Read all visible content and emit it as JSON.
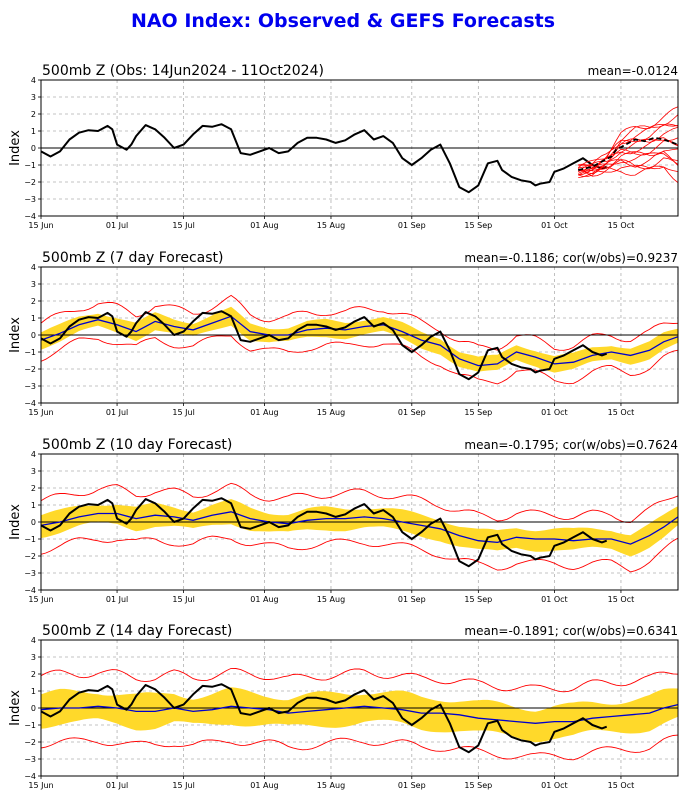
{
  "title": "NAO Index: Observed & GEFS Forecasts",
  "colors": {
    "title": "#0000ee",
    "obs": "#000000",
    "forecast_mean": "#0000cc",
    "band": "#ffd92a",
    "envelope": "#ff0000",
    "zero": "#000000",
    "grid": "#b0b0b0"
  },
  "chart_data": [
    {
      "type": "line",
      "title": "500mb Z (Obs: 14Jun2024 - 11Oct2024)",
      "stats": "mean=-0.0124",
      "ylabel": "Index",
      "xlabel": "",
      "ylim": [
        -4,
        4
      ],
      "yticks": [
        -4,
        -3,
        -2,
        -1,
        0,
        1,
        2,
        3,
        4
      ],
      "xlim": [
        0,
        134
      ],
      "xticks": [
        {
          "x": 0,
          "label": "15 Jun"
        },
        {
          "x": 16,
          "label": "01 Jul"
        },
        {
          "x": 30,
          "label": "15 Jul"
        },
        {
          "x": 47,
          "label": "01 Aug"
        },
        {
          "x": 61,
          "label": "15 Aug"
        },
        {
          "x": 78,
          "label": "01 Sep"
        },
        {
          "x": 92,
          "label": "15 Sep"
        },
        {
          "x": 108,
          "label": "01 Oct"
        },
        {
          "x": 122,
          "label": "15 Oct"
        }
      ],
      "grid": true,
      "series": [
        {
          "role": "observed",
          "x": [
            0,
            2,
            4,
            6,
            8,
            10,
            12,
            14,
            15,
            16,
            18,
            19,
            20,
            22,
            24,
            26,
            28,
            30,
            32,
            34,
            36,
            38,
            40,
            42,
            44,
            46,
            48,
            50,
            52,
            54,
            56,
            58,
            60,
            62,
            64,
            66,
            68,
            70,
            72,
            74,
            76,
            78,
            80,
            82,
            84,
            86,
            88,
            90,
            92,
            94,
            96,
            97,
            99,
            101,
            103,
            104,
            105,
            107,
            108,
            110,
            112,
            114,
            116,
            118,
            119
          ],
          "y": [
            -0.2,
            -0.5,
            -0.2,
            0.5,
            0.9,
            1.05,
            1.0,
            1.3,
            1.1,
            0.2,
            -0.1,
            0.2,
            0.7,
            1.35,
            1.1,
            0.6,
            0.0,
            0.2,
            0.8,
            1.3,
            1.25,
            1.4,
            1.1,
            -0.3,
            -0.4,
            -0.2,
            0.0,
            -0.3,
            -0.2,
            0.3,
            0.6,
            0.6,
            0.5,
            0.3,
            0.45,
            0.8,
            1.05,
            0.5,
            0.7,
            0.3,
            -0.6,
            -1.0,
            -0.6,
            -0.1,
            0.2,
            -0.9,
            -2.3,
            -2.6,
            -2.2,
            -0.9,
            -0.75,
            -1.3,
            -1.7,
            -1.9,
            -2.0,
            -2.2,
            -2.1,
            -2.0,
            -1.4,
            -1.2,
            -0.9,
            -0.6,
            -1.0,
            -1.2,
            -1.1
          ]
        },
        {
          "role": "forecast_mean",
          "x": [
            113,
            116,
            118,
            120,
            121,
            123,
            125,
            127,
            129,
            131,
            134
          ],
          "y": [
            -1.3,
            -1.1,
            -0.8,
            -0.5,
            -0.1,
            0.2,
            0.5,
            0.4,
            0.6,
            0.5,
            0.2
          ]
        },
        {
          "role": "members_upper",
          "x": [
            113,
            116,
            119,
            122,
            125,
            128,
            131,
            134
          ],
          "y": [
            -1.2,
            -0.9,
            -0.4,
            0.7,
            1.2,
            1.4,
            1.8,
            2.2
          ]
        },
        {
          "role": "members_lower",
          "x": [
            113,
            116,
            119,
            122,
            125,
            128,
            131,
            134
          ],
          "y": [
            -1.5,
            -1.6,
            -1.3,
            -1.2,
            -1.5,
            -1.4,
            -1.1,
            -1.8
          ]
        }
      ]
    },
    {
      "type": "line",
      "title": "500mb Z (7 day Forecast)",
      "stats": "mean=-0.1186; cor(w/obs)=0.9237",
      "ylabel": "Index",
      "xlabel": "",
      "ylim": [
        -4,
        4
      ],
      "yticks": [
        -4,
        -3,
        -2,
        -1,
        0,
        1,
        2,
        3,
        4
      ],
      "xlim": [
        0,
        134
      ],
      "xticks": [
        {
          "x": 0,
          "label": "15 Jun"
        },
        {
          "x": 16,
          "label": "01 Jul"
        },
        {
          "x": 30,
          "label": "15 Jul"
        },
        {
          "x": 47,
          "label": "01 Aug"
        },
        {
          "x": 61,
          "label": "15 Aug"
        },
        {
          "x": 78,
          "label": "01 Sep"
        },
        {
          "x": 92,
          "label": "15 Sep"
        },
        {
          "x": 108,
          "label": "01 Oct"
        },
        {
          "x": 122,
          "label": "15 Oct"
        }
      ],
      "grid": true,
      "series": [
        {
          "role": "observed",
          "x": [
            0,
            2,
            4,
            6,
            8,
            10,
            12,
            14,
            15,
            16,
            18,
            19,
            20,
            22,
            24,
            26,
            28,
            30,
            32,
            34,
            36,
            38,
            40,
            42,
            44,
            46,
            48,
            50,
            52,
            54,
            56,
            58,
            60,
            62,
            64,
            66,
            68,
            70,
            72,
            74,
            76,
            78,
            80,
            82,
            84,
            86,
            88,
            90,
            92,
            94,
            96,
            97,
            99,
            101,
            103,
            104,
            105,
            107,
            108,
            110,
            112,
            114,
            116,
            118,
            119
          ],
          "y": [
            -0.2,
            -0.5,
            -0.2,
            0.5,
            0.9,
            1.05,
            1.0,
            1.3,
            1.1,
            0.2,
            -0.1,
            0.2,
            0.7,
            1.35,
            1.1,
            0.6,
            0.0,
            0.2,
            0.8,
            1.3,
            1.25,
            1.4,
            1.1,
            -0.3,
            -0.4,
            -0.2,
            0.0,
            -0.3,
            -0.2,
            0.3,
            0.6,
            0.6,
            0.5,
            0.3,
            0.45,
            0.8,
            1.05,
            0.5,
            0.7,
            0.3,
            -0.6,
            -1.0,
            -0.6,
            -0.1,
            0.2,
            -0.9,
            -2.3,
            -2.6,
            -2.2,
            -0.9,
            -0.75,
            -1.3,
            -1.7,
            -1.9,
            -2.0,
            -2.2,
            -2.1,
            -2.0,
            -1.4,
            -1.2,
            -0.9,
            -0.6,
            -1.0,
            -1.2,
            -1.1
          ]
        },
        {
          "role": "forecast_mean",
          "x": [
            0,
            4,
            8,
            12,
            16,
            20,
            24,
            28,
            32,
            36,
            40,
            44,
            48,
            52,
            56,
            60,
            64,
            68,
            72,
            76,
            80,
            84,
            88,
            92,
            96,
            100,
            104,
            108,
            112,
            116,
            120,
            124,
            128,
            131,
            134
          ],
          "y": [
            -0.3,
            0.1,
            0.6,
            0.9,
            0.6,
            0.2,
            0.8,
            0.5,
            0.3,
            0.7,
            1.1,
            0.2,
            0.0,
            0.0,
            0.3,
            0.4,
            0.3,
            0.5,
            0.6,
            0.2,
            -0.3,
            -0.6,
            -1.4,
            -1.8,
            -1.7,
            -1.0,
            -1.3,
            -1.7,
            -1.6,
            -1.2,
            -1.0,
            -1.2,
            -0.9,
            -0.4,
            -0.1
          ]
        },
        {
          "role": "band_halfwidth",
          "values": 0.45
        },
        {
          "role": "envelope_halfwidth",
          "values": 1.0
        }
      ]
    },
    {
      "type": "line",
      "title": "500mb Z (10 day Forecast)",
      "stats": "mean=-0.1795; cor(w/obs)=0.7624",
      "ylabel": "Index",
      "xlabel": "",
      "ylim": [
        -4,
        4
      ],
      "yticks": [
        -4,
        -3,
        -2,
        -1,
        0,
        1,
        2,
        3,
        4
      ],
      "xlim": [
        0,
        134
      ],
      "xticks": [
        {
          "x": 0,
          "label": "15 Jun"
        },
        {
          "x": 16,
          "label": "01 Jul"
        },
        {
          "x": 30,
          "label": "15 Jul"
        },
        {
          "x": 47,
          "label": "01 Aug"
        },
        {
          "x": 61,
          "label": "15 Aug"
        },
        {
          "x": 78,
          "label": "01 Sep"
        },
        {
          "x": 92,
          "label": "15 Sep"
        },
        {
          "x": 108,
          "label": "01 Oct"
        },
        {
          "x": 122,
          "label": "15 Oct"
        }
      ],
      "grid": true,
      "series": [
        {
          "role": "observed",
          "x": [
            0,
            2,
            4,
            6,
            8,
            10,
            12,
            14,
            15,
            16,
            18,
            19,
            20,
            22,
            24,
            26,
            28,
            30,
            32,
            34,
            36,
            38,
            40,
            42,
            44,
            46,
            48,
            50,
            52,
            54,
            56,
            58,
            60,
            62,
            64,
            66,
            68,
            70,
            72,
            74,
            76,
            78,
            80,
            82,
            84,
            86,
            88,
            90,
            92,
            94,
            96,
            97,
            99,
            101,
            103,
            104,
            105,
            107,
            108,
            110,
            112,
            114,
            116,
            118,
            119
          ],
          "y": [
            -0.2,
            -0.5,
            -0.2,
            0.5,
            0.9,
            1.05,
            1.0,
            1.3,
            1.1,
            0.2,
            -0.1,
            0.2,
            0.7,
            1.35,
            1.1,
            0.6,
            0.0,
            0.2,
            0.8,
            1.3,
            1.25,
            1.4,
            1.1,
            -0.3,
            -0.4,
            -0.2,
            0.0,
            -0.3,
            -0.2,
            0.3,
            0.6,
            0.6,
            0.5,
            0.3,
            0.45,
            0.8,
            1.05,
            0.5,
            0.7,
            0.3,
            -0.6,
            -1.0,
            -0.6,
            -0.1,
            0.2,
            -0.9,
            -2.3,
            -2.6,
            -2.2,
            -0.9,
            -0.75,
            -1.3,
            -1.7,
            -1.9,
            -2.0,
            -2.2,
            -2.1,
            -2.0,
            -1.4,
            -1.2,
            -0.9,
            -0.6,
            -1.0,
            -1.2,
            -1.1
          ]
        },
        {
          "role": "forecast_mean",
          "x": [
            0,
            4,
            8,
            12,
            16,
            20,
            24,
            28,
            32,
            36,
            40,
            44,
            48,
            52,
            56,
            60,
            64,
            68,
            72,
            76,
            80,
            84,
            88,
            92,
            96,
            100,
            104,
            108,
            112,
            116,
            120,
            124,
            128,
            131,
            134
          ],
          "y": [
            -0.2,
            0.0,
            0.3,
            0.5,
            0.5,
            0.2,
            0.4,
            0.3,
            0.1,
            0.4,
            0.6,
            0.2,
            0.0,
            -0.1,
            0.1,
            0.2,
            0.2,
            0.3,
            0.2,
            0.0,
            -0.2,
            -0.4,
            -0.8,
            -1.1,
            -1.2,
            -0.9,
            -1.0,
            -1.0,
            -1.1,
            -1.0,
            -1.0,
            -1.3,
            -0.8,
            -0.3,
            0.3
          ]
        },
        {
          "role": "band_halfwidth",
          "values": 0.6
        },
        {
          "role": "envelope_halfwidth",
          "values": 1.45
        }
      ]
    },
    {
      "type": "line",
      "title": "500mb Z (14 day Forecast)",
      "stats": "mean=-0.1891; cor(w/obs)=0.6341",
      "ylabel": "Index",
      "xlabel": "",
      "ylim": [
        -4,
        4
      ],
      "yticks": [
        -4,
        -3,
        -2,
        -1,
        0,
        1,
        2,
        3,
        4
      ],
      "xlim": [
        0,
        134
      ],
      "xticks": [
        {
          "x": 0,
          "label": "15 Jun"
        },
        {
          "x": 16,
          "label": "01 Jul"
        },
        {
          "x": 30,
          "label": "15 Jul"
        },
        {
          "x": 47,
          "label": "01 Aug"
        },
        {
          "x": 61,
          "label": "15 Aug"
        },
        {
          "x": 78,
          "label": "01 Sep"
        },
        {
          "x": 92,
          "label": "15 Sep"
        },
        {
          "x": 108,
          "label": "01 Oct"
        },
        {
          "x": 122,
          "label": "15 Oct"
        }
      ],
      "grid": true,
      "series": [
        {
          "role": "observed",
          "x": [
            0,
            2,
            4,
            6,
            8,
            10,
            12,
            14,
            15,
            16,
            18,
            19,
            20,
            22,
            24,
            26,
            28,
            30,
            32,
            34,
            36,
            38,
            40,
            42,
            44,
            46,
            48,
            50,
            52,
            54,
            56,
            58,
            60,
            62,
            64,
            66,
            68,
            70,
            72,
            74,
            76,
            78,
            80,
            82,
            84,
            86,
            88,
            90,
            92,
            94,
            96,
            97,
            99,
            101,
            103,
            104,
            105,
            107,
            108,
            110,
            112,
            114,
            116,
            118,
            119
          ],
          "y": [
            -0.2,
            -0.5,
            -0.2,
            0.5,
            0.9,
            1.05,
            1.0,
            1.3,
            1.1,
            0.2,
            -0.1,
            0.2,
            0.7,
            1.35,
            1.1,
            0.6,
            0.0,
            0.2,
            0.8,
            1.3,
            1.25,
            1.4,
            1.1,
            -0.3,
            -0.4,
            -0.2,
            0.0,
            -0.3,
            -0.2,
            0.3,
            0.6,
            0.6,
            0.5,
            0.3,
            0.45,
            0.8,
            1.05,
            0.5,
            0.7,
            0.3,
            -0.6,
            -1.0,
            -0.6,
            -0.1,
            0.2,
            -0.9,
            -2.3,
            -2.6,
            -2.2,
            -0.9,
            -0.75,
            -1.3,
            -1.7,
            -1.9,
            -2.0,
            -2.2,
            -2.1,
            -2.0,
            -1.4,
            -1.2,
            -0.9,
            -0.6,
            -1.0,
            -1.2,
            -1.1
          ]
        },
        {
          "role": "forecast_mean",
          "x": [
            0,
            4,
            8,
            12,
            16,
            20,
            24,
            28,
            32,
            36,
            40,
            44,
            48,
            52,
            56,
            60,
            64,
            68,
            72,
            76,
            80,
            84,
            88,
            92,
            96,
            100,
            104,
            108,
            112,
            116,
            120,
            124,
            128,
            131,
            134
          ],
          "y": [
            -0.1,
            0.0,
            0.0,
            0.1,
            0.0,
            -0.2,
            -0.2,
            0.0,
            -0.2,
            -0.1,
            0.1,
            0.0,
            -0.1,
            -0.3,
            -0.2,
            -0.1,
            0.0,
            0.1,
            0.0,
            -0.1,
            -0.3,
            -0.3,
            -0.4,
            -0.6,
            -0.7,
            -0.8,
            -0.9,
            -0.8,
            -0.8,
            -0.6,
            -0.5,
            -0.4,
            -0.3,
            0.0,
            0.2
          ]
        },
        {
          "role": "band_halfwidth",
          "values": 0.9
        },
        {
          "role": "envelope_halfwidth",
          "values": 2.0
        }
      ]
    }
  ]
}
